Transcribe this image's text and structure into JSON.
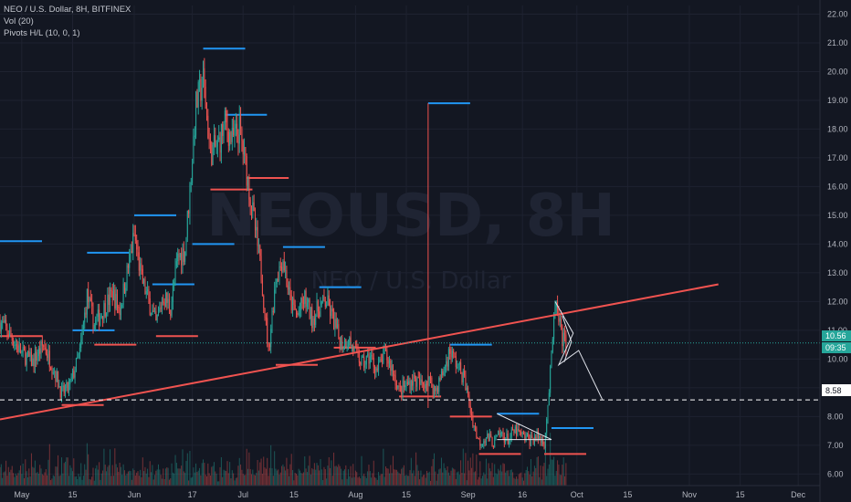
{
  "legend": {
    "line1": "NEO / U.S. Dollar, 8H, BITFINEX",
    "line2": "Vol (20)",
    "line3": "Pivots H/L (10, 0, 1)"
  },
  "watermark": {
    "main": "NEOUSD, 8H",
    "sub": "NEO / U.S. Dollar"
  },
  "price_badges": {
    "last_price": "10.56",
    "countdown": "09:35",
    "level": "8.58"
  },
  "colors": {
    "background": "#131722",
    "up": "#26a69a",
    "down": "#ef5350",
    "pivot_high": "#2196f3",
    "pivot_low": "#ef5350",
    "trendline": "#f05350",
    "last_price": "#26a69a"
  },
  "chart_data": {
    "type": "candlestick",
    "symbol": "NEOUSD",
    "timeframe": "8H",
    "exchange": "BITFINEX",
    "y_ticks": [
      "6.00",
      "7.00",
      "8.00",
      "9.00",
      "10.00",
      "11.00",
      "12.00",
      "13.00",
      "14.00",
      "15.00",
      "16.00",
      "17.00",
      "18.00",
      "19.00",
      "20.00",
      "21.00",
      "22.00"
    ],
    "ylim": [
      5.6,
      22.3
    ],
    "x_ticks": [
      "May",
      "15",
      "Jun",
      "17",
      "Jul",
      "15",
      "Aug",
      "15",
      "Sep",
      "16",
      "Oct",
      "15",
      "Nov",
      "15",
      "Dec"
    ],
    "x_tick_days": [
      0,
      14,
      31,
      47,
      61,
      75,
      92,
      106,
      123,
      138,
      153,
      167,
      184,
      198,
      214
    ],
    "x_domain_days": [
      -6,
      220
    ],
    "price_path": [
      [
        -6,
        11.3
      ],
      [
        -3,
        10.8
      ],
      [
        0,
        10.2
      ],
      [
        3,
        9.9
      ],
      [
        6,
        10.5
      ],
      [
        9,
        9.6
      ],
      [
        11,
        8.8
      ],
      [
        13,
        9.0
      ],
      [
        16,
        10.2
      ],
      [
        18,
        12.2
      ],
      [
        20,
        11.2
      ],
      [
        22,
        11.6
      ],
      [
        25,
        12.3
      ],
      [
        27,
        11.7
      ],
      [
        29,
        13.0
      ],
      [
        31,
        14.3
      ],
      [
        33,
        12.8
      ],
      [
        35,
        12.0
      ],
      [
        37,
        11.2
      ],
      [
        39,
        12.2
      ],
      [
        41,
        11.8
      ],
      [
        43,
        13.5
      ],
      [
        45,
        13.8
      ],
      [
        47,
        17.0
      ],
      [
        48,
        18.8
      ],
      [
        50,
        19.7
      ],
      [
        52,
        17.2
      ],
      [
        54,
        17.4
      ],
      [
        56,
        18.2
      ],
      [
        58,
        17.6
      ],
      [
        60,
        18.0
      ],
      [
        62,
        16.5
      ],
      [
        64,
        14.8
      ],
      [
        66,
        13.0
      ],
      [
        68,
        10.3
      ],
      [
        70,
        12.8
      ],
      [
        72,
        13.5
      ],
      [
        74,
        12.0
      ],
      [
        76,
        11.5
      ],
      [
        78,
        12.1
      ],
      [
        80,
        11.4
      ],
      [
        82,
        11.8
      ],
      [
        84,
        12.0
      ],
      [
        86,
        11.3
      ],
      [
        88,
        10.5
      ],
      [
        90,
        10.7
      ],
      [
        92,
        10.2
      ],
      [
        94,
        9.8
      ],
      [
        96,
        10.1
      ],
      [
        98,
        9.6
      ],
      [
        100,
        10.2
      ],
      [
        102,
        9.7
      ],
      [
        104,
        8.9
      ],
      [
        106,
        9.1
      ],
      [
        108,
        9.3
      ],
      [
        110,
        9.1
      ],
      [
        112,
        9.3
      ],
      [
        114,
        8.9
      ],
      [
        116,
        9.5
      ],
      [
        118,
        10.3
      ],
      [
        120,
        9.8
      ],
      [
        122,
        9.3
      ],
      [
        124,
        8.0
      ],
      [
        126,
        7.1
      ],
      [
        128,
        7.3
      ],
      [
        130,
        7.1
      ],
      [
        132,
        7.4
      ],
      [
        134,
        7.2
      ],
      [
        136,
        7.5
      ],
      [
        138,
        7.3
      ],
      [
        140,
        7.2
      ],
      [
        142,
        7.3
      ],
      [
        144,
        7.1
      ],
      [
        145,
        8.4
      ],
      [
        146,
        10.0
      ],
      [
        147,
        12.0
      ],
      [
        148,
        11.3
      ],
      [
        149,
        10.7
      ],
      [
        150,
        10.56
      ]
    ],
    "pivot_highs": [
      {
        "day": -6,
        "price": 14.1
      },
      {
        "day": 14,
        "price": 11.0
      },
      {
        "day": 18,
        "price": 13.7
      },
      {
        "day": 31,
        "price": 15.0
      },
      {
        "day": 36,
        "price": 12.6
      },
      {
        "day": 47,
        "price": 14.0
      },
      {
        "day": 50,
        "price": 20.8
      },
      {
        "day": 56,
        "price": 18.5
      },
      {
        "day": 72,
        "price": 13.9
      },
      {
        "day": 82,
        "price": 12.5
      },
      {
        "day": 112,
        "price": 18.9
      },
      {
        "day": 118,
        "price": 10.5
      },
      {
        "day": 131,
        "price": 8.1
      },
      {
        "day": 146,
        "price": 7.6
      }
    ],
    "pivot_lows": [
      {
        "day": -6,
        "price": 10.8
      },
      {
        "day": 11,
        "price": 8.4
      },
      {
        "day": 20,
        "price": 10.5
      },
      {
        "day": 37,
        "price": 10.8
      },
      {
        "day": 52,
        "price": 15.9
      },
      {
        "day": 62,
        "price": 16.3
      },
      {
        "day": 70,
        "price": 9.8
      },
      {
        "day": 86,
        "price": 10.4
      },
      {
        "day": 104,
        "price": 8.7
      },
      {
        "day": 118,
        "price": 8.0
      },
      {
        "day": 126,
        "price": 6.7
      },
      {
        "day": 144,
        "price": 6.7
      }
    ],
    "trendline": {
      "from": {
        "day": -6,
        "price": 7.9
      },
      "to": {
        "day": 192,
        "price": 12.6
      }
    },
    "horizontal_level": 8.58,
    "last_price": 10.56
  }
}
